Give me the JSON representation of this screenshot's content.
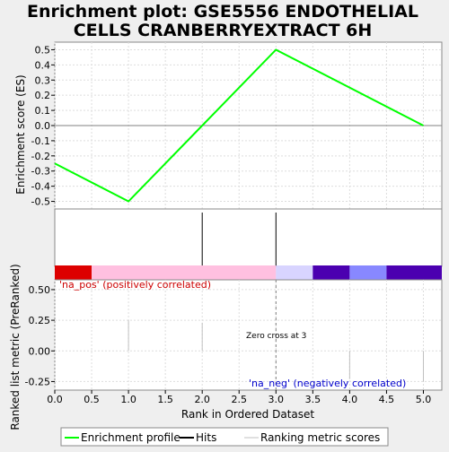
{
  "chart_data": {
    "type": "line",
    "title": "Enrichment plot: GSE5556 ENDOTHELIAL CELLS CRANBERRYEXTRACT 6H",
    "title_lines": [
      "Enrichment plot: GSE5556 ENDOTHELIAL",
      "CELLS CRANBERRYEXTRACT 6H"
    ],
    "xlabel": "Rank in Ordered Dataset",
    "xlim": [
      0,
      5.25
    ],
    "x_ticks": [
      "0.0",
      "0.5",
      "1.0",
      "1.5",
      "2.0",
      "2.5",
      "3.0",
      "3.5",
      "4.0",
      "4.5",
      "5.0"
    ],
    "es_panel": {
      "ylabel": "Enrichment score (ES)",
      "ylim": [
        -0.55,
        0.55
      ],
      "y_ticks": [
        "0.5",
        "0.4",
        "0.3",
        "0.2",
        "0.1",
        "0.0",
        "-0.1",
        "-0.2",
        "-0.3",
        "-0.4",
        "-0.5"
      ],
      "series": [
        {
          "name": "Enrichment profile",
          "color": "#00ff00",
          "x": [
            0,
            1,
            2,
            3,
            5
          ],
          "y": [
            -0.25,
            -0.5,
            0.0,
            0.5,
            0.0
          ]
        }
      ]
    },
    "hits": [
      2,
      3
    ],
    "color_bar": [
      {
        "from": 0.0,
        "to": 0.5,
        "color": "#dd0000"
      },
      {
        "from": 0.5,
        "to": 3.0,
        "color": "#ffc0e0"
      },
      {
        "from": 3.0,
        "to": 3.5,
        "color": "#d8d4ff"
      },
      {
        "from": 3.5,
        "to": 4.0,
        "color": "#4b00b0"
      },
      {
        "from": 4.0,
        "to": 4.5,
        "color": "#8888ff"
      },
      {
        "from": 4.5,
        "to": 5.25,
        "color": "#4b00b0"
      }
    ],
    "metric_panel": {
      "ylabel": "Ranked list metric (PreRanked)",
      "ylim": [
        -0.32,
        0.58
      ],
      "y_ticks": [
        "0.50",
        "0.25",
        "0.00",
        "-0.25"
      ],
      "ranking_scores": [
        {
          "x": 1,
          "y": 0.25
        },
        {
          "x": 2,
          "y": 0.23
        },
        {
          "x": 3,
          "y": 0.0
        },
        {
          "x": 4,
          "y": -0.23
        },
        {
          "x": 5,
          "y": -0.25
        }
      ],
      "pos_label": "'na_pos' (positively correlated)",
      "neg_label": "'na_neg' (negatively correlated)",
      "zero_cross_label": "Zero cross at 3",
      "zero_cross_x": 3
    },
    "legend": {
      "position": "bottom",
      "items": [
        {
          "label": "Enrichment profile",
          "color": "#00ff00"
        },
        {
          "label": "Hits",
          "color": "#000000"
        },
        {
          "label": "Ranking metric scores",
          "color": "#c0c0c0"
        }
      ]
    },
    "colors": {
      "pos_label": "#cc0000",
      "neg_label": "#0000cc",
      "grid": "#dddddd",
      "zero_line": "#808080"
    }
  }
}
